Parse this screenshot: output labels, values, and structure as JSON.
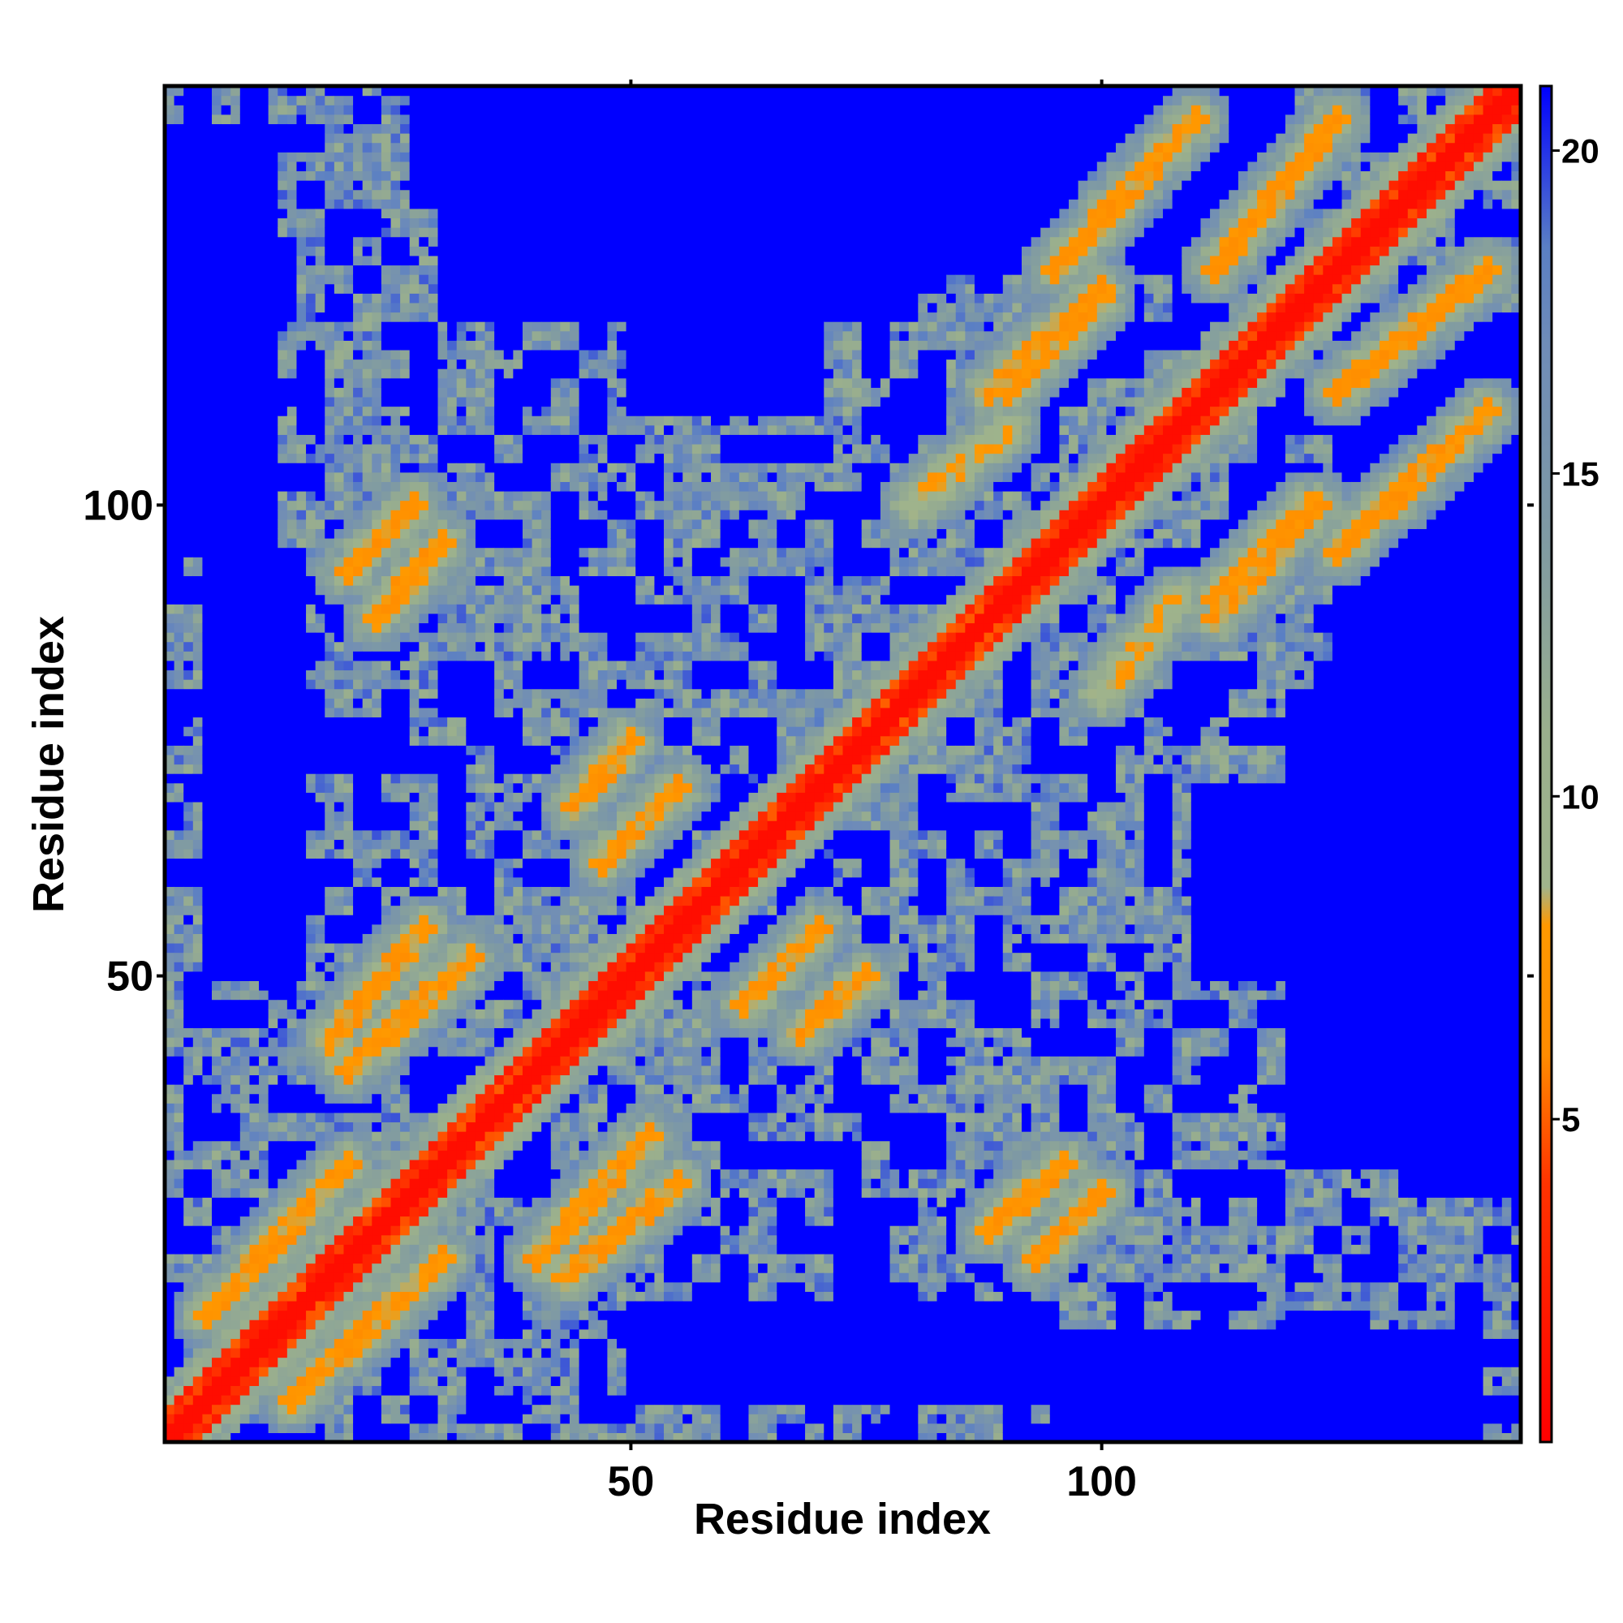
{
  "chart_data": {
    "type": "heatmap",
    "title": "",
    "xlabel": "Residue index",
    "ylabel": "Residue index",
    "n_residues": 144,
    "xlim": [
      0.5,
      144.5
    ],
    "ylim": [
      0.5,
      144.5
    ],
    "x_ticks": [
      50,
      100
    ],
    "y_ticks": [
      50,
      100
    ],
    "colorbar": {
      "ticks": [
        5,
        10,
        15,
        20
      ],
      "range": [
        0,
        21
      ],
      "stops": [
        {
          "value": 0,
          "color": "#ff0000"
        },
        {
          "value": 4,
          "color": "#ff3300"
        },
        {
          "value": 6,
          "color": "#ff8c00"
        },
        {
          "value": 8,
          "color": "#ff9900"
        },
        {
          "value": 8.6,
          "color": "#a0b48c"
        },
        {
          "value": 11,
          "color": "#9aaf8d"
        },
        {
          "value": 14,
          "color": "#7f9aa3"
        },
        {
          "value": 17,
          "color": "#6f8cb8"
        },
        {
          "value": 18.5,
          "color": "#5a7fc4"
        },
        {
          "value": 21,
          "color": "#0000ff"
        }
      ]
    },
    "value_description": "Pairwise residue distance map (symmetric). Diagonal band ~0-4, secondary-structure contacts ~5-8, background far pairs saturated at 21.",
    "contact_segments": [
      {
        "i0": 5,
        "j0": 14,
        "i1": 20,
        "j1": 30,
        "value": 6
      },
      {
        "i0": 18,
        "j0": 43,
        "i1": 28,
        "j1": 55,
        "value": 6
      },
      {
        "i0": 20,
        "j0": 93,
        "i1": 27,
        "j1": 100,
        "value": 6
      },
      {
        "i0": 40,
        "j0": 20,
        "i1": 52,
        "j1": 33,
        "value": 6
      },
      {
        "i0": 44,
        "j0": 68,
        "i1": 50,
        "j1": 75,
        "value": 6
      },
      {
        "i0": 62,
        "j0": 47,
        "i1": 70,
        "j1": 55,
        "value": 6
      },
      {
        "i0": 88,
        "j0": 23,
        "i1": 96,
        "j1": 30,
        "value": 6
      },
      {
        "i0": 88,
        "j0": 112,
        "i1": 100,
        "j1": 123,
        "value": 6
      },
      {
        "i0": 95,
        "j0": 125,
        "i1": 110,
        "j1": 141,
        "value": 6
      },
      {
        "i0": 112,
        "j0": 90,
        "i1": 122,
        "j1": 100,
        "value": 6
      },
      {
        "i0": 125,
        "j0": 112,
        "i1": 141,
        "j1": 125,
        "value": 6
      },
      {
        "i0": 100,
        "j0": 80,
        "i1": 108,
        "j1": 90,
        "value": 7
      }
    ],
    "far_regions": [
      {
        "i0": 5,
        "i1": 15,
        "j0": 50,
        "j1": 95
      },
      {
        "i0": 50,
        "i1": 70,
        "j0": 110,
        "j1": 144
      },
      {
        "i0": 95,
        "i1": 140,
        "j0": 1,
        "j1": 12
      },
      {
        "i0": 120,
        "i1": 144,
        "j0": 30,
        "j1": 80
      },
      {
        "i0": 75,
        "i1": 120,
        "j0": 125,
        "j1": 144
      }
    ]
  }
}
